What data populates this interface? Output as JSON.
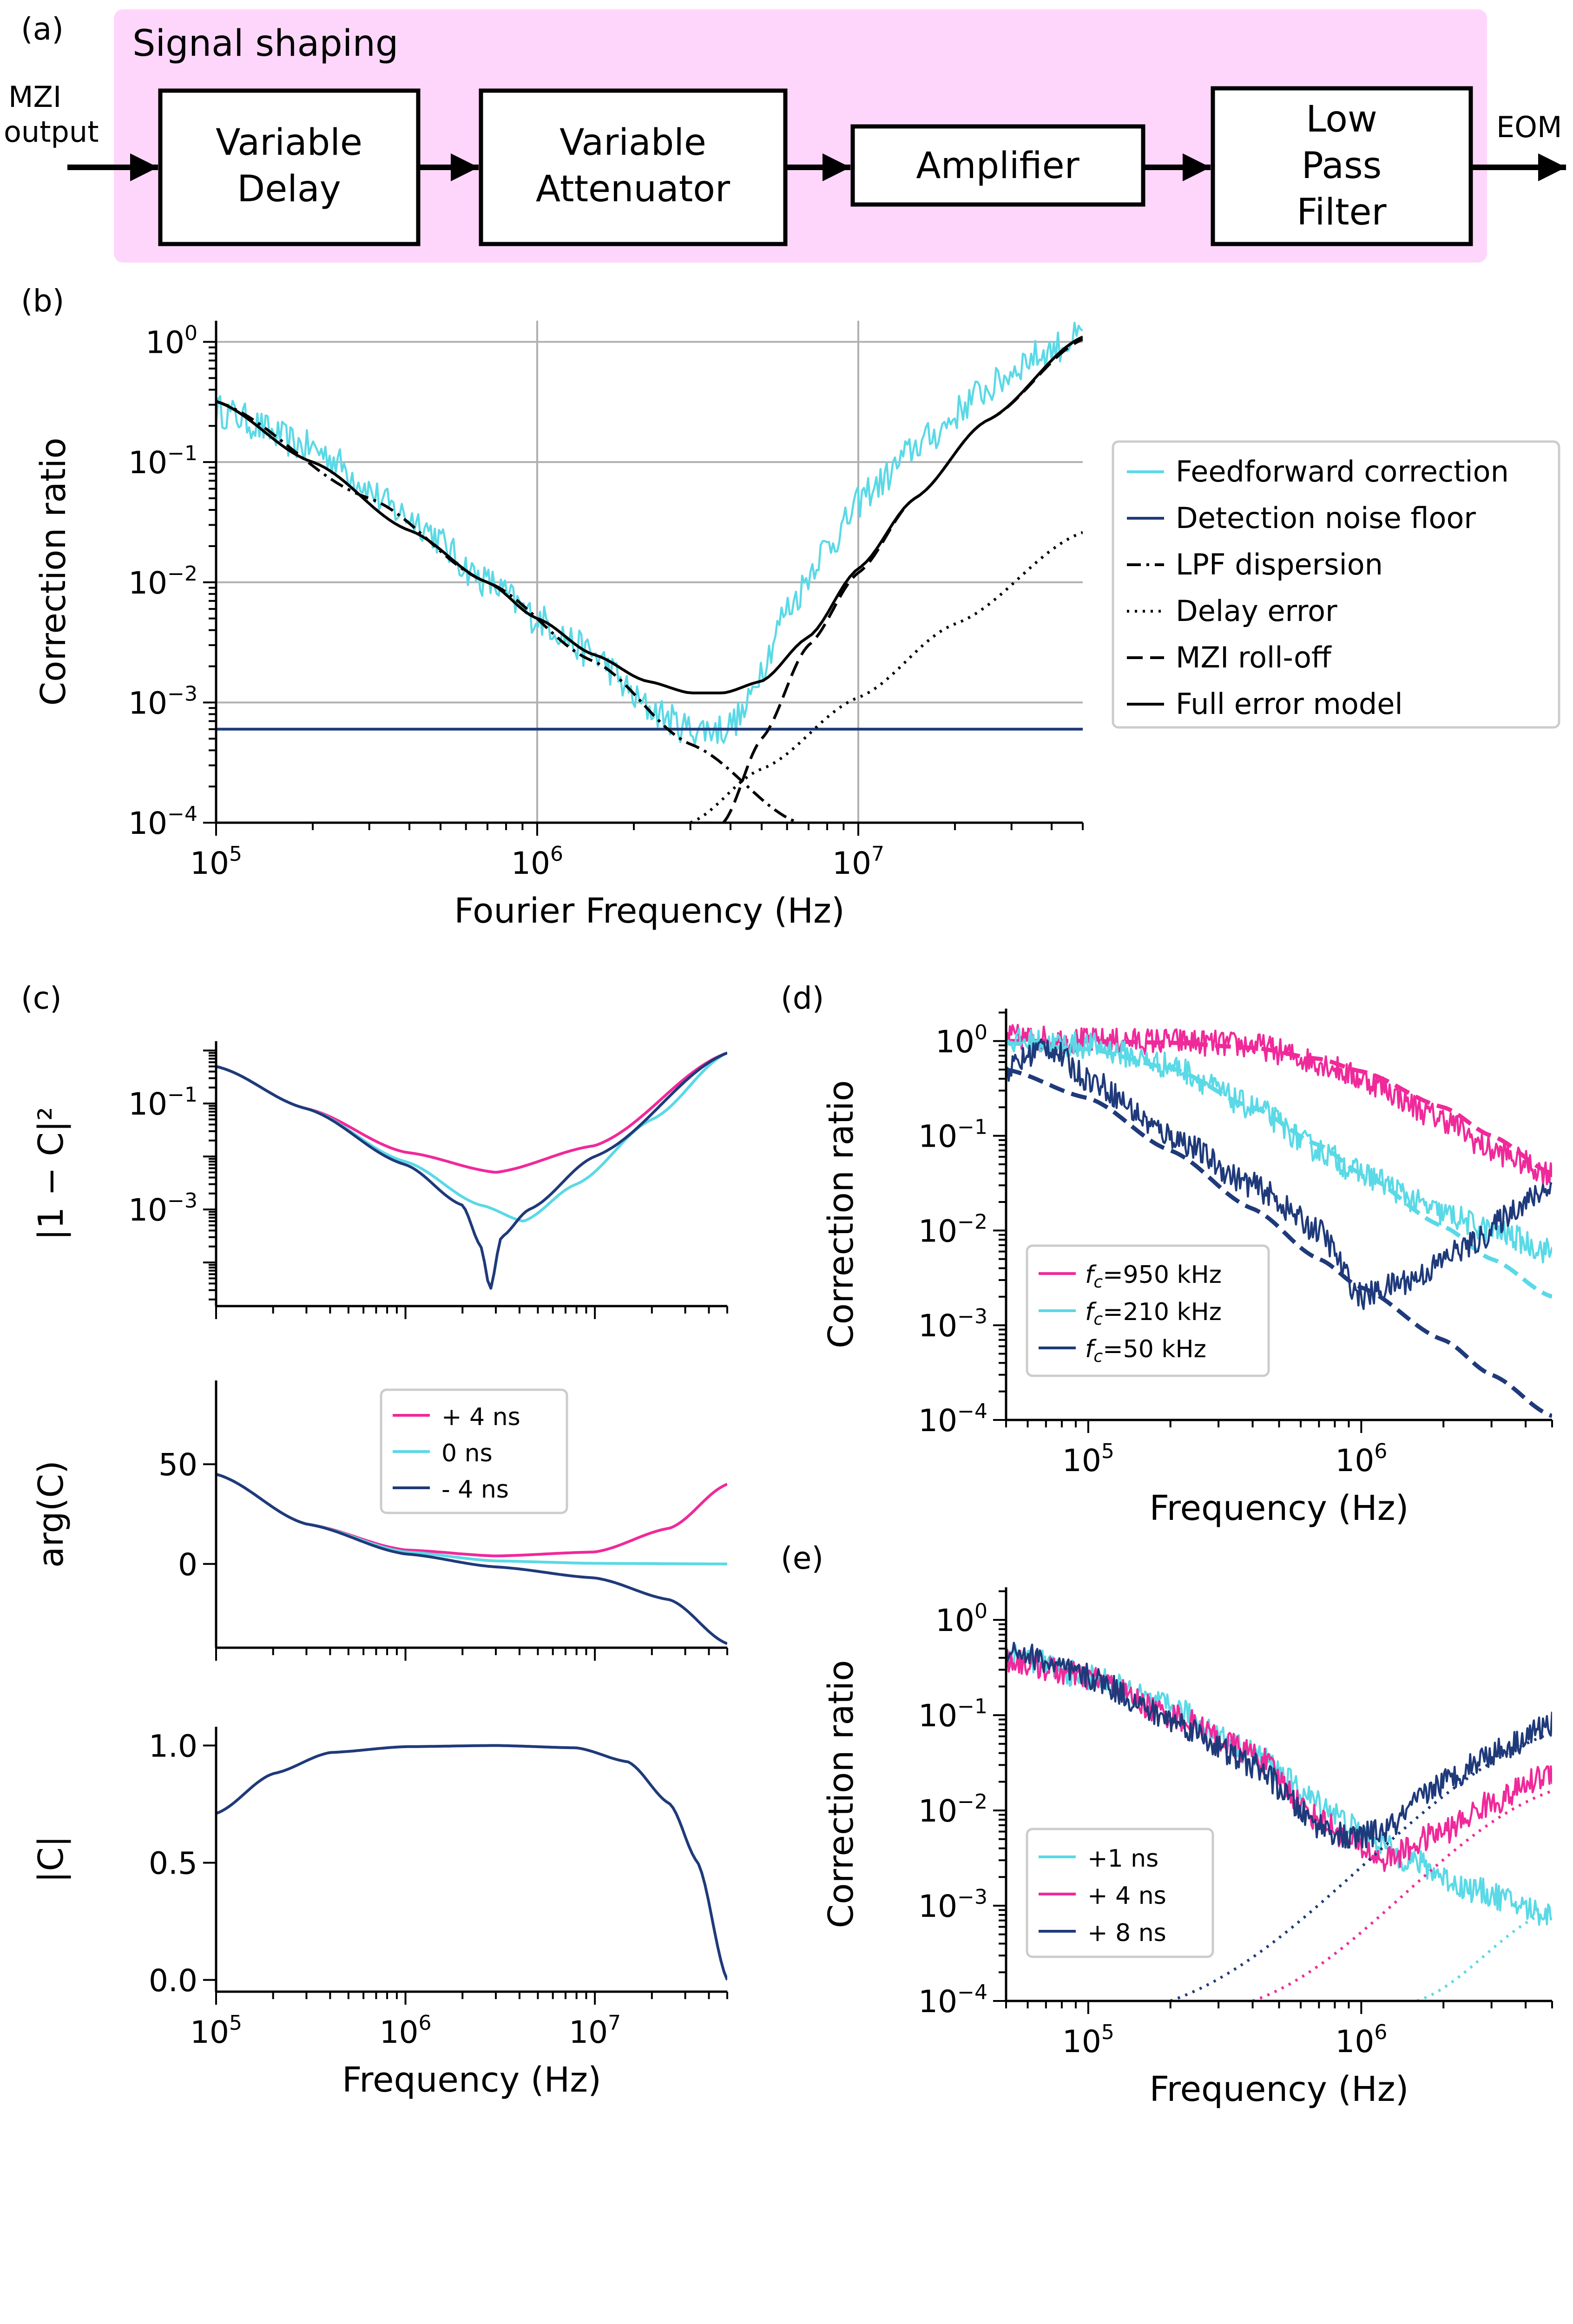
{
  "panel_a": {
    "label": "(a)",
    "group_title": "Signal shaping",
    "input_label_line1": "MZI",
    "input_label_line2": "output",
    "output_label": "EOM",
    "blocks": [
      {
        "line1": "Variable",
        "line2": "Delay"
      },
      {
        "line1": "Variable",
        "line2": "Attenuator"
      },
      {
        "line1": "Amplifier"
      },
      {
        "line1": "Low",
        "line2": "Pass",
        "line3": "Filter"
      }
    ],
    "colors": {
      "group_fill": "#ffd6fb"
    }
  },
  "chart_data": [
    {
      "id": "b",
      "label": "(b)",
      "type": "line",
      "xscale": "log",
      "yscale": "log",
      "xlabel": "Fourier Frequency (Hz)",
      "ylabel": "Correction ratio",
      "xlim": [
        100000,
        50000000
      ],
      "ylim": [
        0.0001,
        1.5
      ],
      "xticks": [
        {
          "base": "10",
          "exp": "5"
        },
        {
          "base": "10",
          "exp": "6"
        },
        {
          "base": "10",
          "exp": "7"
        }
      ],
      "yticks": [
        {
          "base": "10",
          "exp": "0"
        },
        {
          "base": "10",
          "exp": "−1"
        },
        {
          "base": "10",
          "exp": "−2"
        },
        {
          "base": "10",
          "exp": "−3"
        },
        {
          "base": "10",
          "exp": "−4"
        }
      ],
      "grid": true,
      "legend_position": "right",
      "series": [
        {
          "name": "Feedforward correction",
          "color": "#5ad9e6",
          "style": "solid",
          "noisy": true,
          "x": [
            100000,
            200000,
            400000,
            700000,
            1000000,
            1500000,
            2200000,
            3000000,
            3800000,
            4400000,
            5000000,
            6000000,
            8000000,
            11000000,
            16000000,
            25000000,
            35000000,
            50000000
          ],
          "y": [
            0.27,
            0.13,
            0.035,
            0.01,
            0.005,
            0.0025,
            0.0009,
            0.0006,
            0.0006,
            0.0008,
            0.002,
            0.006,
            0.02,
            0.06,
            0.15,
            0.4,
            0.75,
            1.1
          ]
        },
        {
          "name": "Detection noise floor",
          "color": "#1f3a7a",
          "style": "solid",
          "x": [
            100000,
            50000000
          ],
          "y": [
            0.0006,
            0.0006
          ]
        },
        {
          "name": "LPF dispersion",
          "color": "#000000",
          "style": "dashdot",
          "x": [
            100000,
            300000,
            700000,
            1500000,
            3000000,
            6500000
          ],
          "y": [
            0.32,
            0.05,
            0.01,
            0.0022,
            0.00045,
            0.0001
          ]
        },
        {
          "name": "Delay error",
          "color": "#000000",
          "style": "dotted",
          "x": [
            3000000,
            5000000,
            10000000,
            20000000,
            50000000
          ],
          "y": [
            0.0001,
            0.00028,
            0.0011,
            0.0045,
            0.026
          ]
        },
        {
          "name": "MZI roll-off",
          "color": "#000000",
          "style": "dashed",
          "x": [
            3800000,
            5000000,
            7000000,
            10000000,
            15000000,
            25000000,
            50000000
          ],
          "y": [
            0.0001,
            0.0005,
            0.003,
            0.012,
            0.05,
            0.22,
            1.05
          ]
        },
        {
          "name": "Full error model",
          "color": "#000000",
          "style": "solid",
          "x": [
            100000,
            200000,
            400000,
            700000,
            1000000,
            1500000,
            2200000,
            3000000,
            3800000,
            5000000,
            7000000,
            10000000,
            15000000,
            25000000,
            50000000
          ],
          "y": [
            0.32,
            0.1,
            0.027,
            0.01,
            0.005,
            0.0025,
            0.0015,
            0.0012,
            0.0012,
            0.0015,
            0.0035,
            0.013,
            0.05,
            0.22,
            1.1
          ]
        }
      ]
    },
    {
      "id": "c1",
      "label": "(c)",
      "type": "line",
      "xscale": "log",
      "yscale": "log",
      "ylabel": "|1 − C|²",
      "xlim": [
        100000,
        50000000
      ],
      "ylim": [
        1.5e-05,
        1.5
      ],
      "yticks": [
        {
          "base": "10",
          "exp": "−1"
        },
        {
          "base": "10",
          "exp": "−3"
        }
      ],
      "grid": false,
      "series": [
        {
          "name": "+ 4 ns",
          "color": "#f0299a",
          "x": [
            100000,
            300000,
            1000000,
            3000000,
            10000000,
            50000000
          ],
          "y": [
            0.5,
            0.08,
            0.012,
            0.005,
            0.016,
            0.9
          ]
        },
        {
          "name": "0 ns",
          "color": "#5ad9e6",
          "x": [
            100000,
            300000,
            1000000,
            2500000,
            4200000,
            8000000,
            20000000,
            50000000
          ],
          "y": [
            0.5,
            0.08,
            0.008,
            0.0012,
            0.0006,
            0.003,
            0.05,
            0.9
          ]
        },
        {
          "name": "- 4 ns",
          "color": "#1f3a7a",
          "x": [
            100000,
            300000,
            1000000,
            2000000,
            2500000,
            2800000,
            3200000,
            4500000,
            10000000,
            50000000
          ],
          "y": [
            0.5,
            0.08,
            0.007,
            0.0012,
            0.0002,
            3e-05,
            0.0003,
            0.001,
            0.01,
            0.9
          ]
        }
      ]
    },
    {
      "id": "c2",
      "type": "line",
      "xscale": "log",
      "yscale": "linear",
      "ylabel": "arg(C)",
      "xlim": [
        100000,
        50000000
      ],
      "ylim": [
        -42,
        92
      ],
      "yticks": [
        {
          "value": 50,
          "text": "50"
        },
        {
          "value": 0,
          "text": "0"
        }
      ],
      "grid": false,
      "legend_position": "top-center",
      "series": [
        {
          "name": "+ 4 ns",
          "color": "#f0299a",
          "x": [
            100000,
            300000,
            1000000,
            3000000,
            10000000,
            25000000,
            50000000
          ],
          "y": [
            45,
            20,
            7,
            4,
            6,
            18,
            40
          ]
        },
        {
          "name": "0 ns",
          "color": "#5ad9e6",
          "x": [
            100000,
            300000,
            1000000,
            3000000,
            10000000,
            50000000
          ],
          "y": [
            45,
            20,
            6,
            1.5,
            0.3,
            0
          ]
        },
        {
          "name": "- 4 ns",
          "color": "#1f3a7a",
          "x": [
            100000,
            300000,
            1000000,
            3000000,
            10000000,
            25000000,
            50000000
          ],
          "y": [
            45,
            20,
            5,
            -1.5,
            -7,
            -18,
            -40
          ]
        }
      ]
    },
    {
      "id": "c3",
      "type": "line",
      "xscale": "log",
      "yscale": "linear",
      "xlabel": "Frequency (Hz)",
      "ylabel": "|C|",
      "xlim": [
        100000,
        50000000
      ],
      "ylim": [
        -0.05,
        1.08
      ],
      "xticks": [
        {
          "base": "10",
          "exp": "5"
        },
        {
          "base": "10",
          "exp": "6"
        },
        {
          "base": "10",
          "exp": "7"
        }
      ],
      "yticks": [
        {
          "value": 1.0,
          "text": "1.0"
        },
        {
          "value": 0.5,
          "text": "0.5"
        },
        {
          "value": 0.0,
          "text": "0.0"
        }
      ],
      "grid": false,
      "series": [
        {
          "name": "|C|",
          "color": "#1f3a7a",
          "x": [
            100000,
            200000,
            400000,
            1000000,
            3000000,
            8000000,
            15000000,
            25000000,
            35000000,
            50000000
          ],
          "y": [
            0.71,
            0.88,
            0.97,
            0.995,
            1.0,
            0.99,
            0.93,
            0.75,
            0.5,
            0.0
          ]
        }
      ]
    },
    {
      "id": "d",
      "label": "(d)",
      "type": "line",
      "xscale": "log",
      "yscale": "log",
      "xlabel": "Frequency (Hz)",
      "ylabel": "Correction ratio",
      "xlim": [
        50000,
        5000000
      ],
      "ylim": [
        0.0001,
        2.2
      ],
      "xticks": [
        {
          "base": "10",
          "exp": "5"
        },
        {
          "base": "10",
          "exp": "6"
        }
      ],
      "yticks": [
        {
          "base": "10",
          "exp": "0"
        },
        {
          "base": "10",
          "exp": "−1"
        },
        {
          "base": "10",
          "exp": "−2"
        },
        {
          "base": "10",
          "exp": "−3"
        },
        {
          "base": "10",
          "exp": "−4"
        }
      ],
      "grid": false,
      "legend_position": "lower-left",
      "legend": [
        {
          "prefix": "f",
          "sub": "c",
          "suffix": "=950 kHz",
          "color": "#f0299a"
        },
        {
          "prefix": "f",
          "sub": "c",
          "suffix": "=210 kHz",
          "color": "#5ad9e6"
        },
        {
          "prefix": "f",
          "sub": "c",
          "suffix": "=50 kHz",
          "color": "#1f3a7a"
        }
      ],
      "series": [
        {
          "name": "fc=950 kHz measured",
          "color": "#f0299a",
          "style": "solid",
          "noisy": true,
          "x": [
            50000,
            100000,
            200000,
            400000,
            700000,
            1000000,
            2000000,
            3000000,
            5000000
          ],
          "y": [
            1.1,
            1.0,
            1.0,
            0.9,
            0.6,
            0.4,
            0.15,
            0.07,
            0.04
          ]
        },
        {
          "name": "fc=950 kHz model",
          "color": "#f0299a",
          "style": "dashed",
          "x": [
            50000,
            100000,
            200000,
            400000,
            700000,
            1000000,
            2000000,
            3000000,
            5000000
          ],
          "y": [
            1.0,
            1.0,
            0.96,
            0.85,
            0.65,
            0.48,
            0.2,
            0.1,
            0.04
          ]
        },
        {
          "name": "fc=210 kHz measured",
          "color": "#5ad9e6",
          "style": "solid",
          "noisy": true,
          "x": [
            50000,
            100000,
            200000,
            400000,
            700000,
            1000000,
            2000000,
            3000000,
            5000000
          ],
          "y": [
            1.0,
            0.9,
            0.55,
            0.2,
            0.07,
            0.04,
            0.015,
            0.01,
            0.006
          ]
        },
        {
          "name": "fc=210 kHz model",
          "color": "#5ad9e6",
          "style": "dashed",
          "x": [
            50000,
            100000,
            200000,
            400000,
            700000,
            1000000,
            2000000,
            3000000,
            5000000
          ],
          "y": [
            0.95,
            0.82,
            0.52,
            0.2,
            0.08,
            0.04,
            0.011,
            0.005,
            0.002
          ]
        },
        {
          "name": "fc=50 kHz measured",
          "color": "#1f3a7a",
          "style": "solid",
          "noisy": true,
          "x": [
            50000,
            70000,
            100000,
            200000,
            400000,
            700000,
            1000000,
            1500000,
            2500000,
            4000000,
            5000000
          ],
          "y": [
            0.5,
            0.9,
            0.4,
            0.1,
            0.03,
            0.01,
            0.002,
            0.003,
            0.007,
            0.02,
            0.03
          ]
        },
        {
          "name": "fc=50 kHz model",
          "color": "#1f3a7a",
          "style": "dashed",
          "x": [
            50000,
            100000,
            200000,
            400000,
            700000,
            1000000,
            2000000,
            3000000,
            5000000
          ],
          "y": [
            0.5,
            0.25,
            0.07,
            0.017,
            0.005,
            0.0025,
            0.0007,
            0.0003,
            0.00011
          ]
        }
      ]
    },
    {
      "id": "e",
      "label": "(e)",
      "type": "line",
      "xscale": "log",
      "yscale": "log",
      "xlabel": "Frequency (Hz)",
      "ylabel": "Correction ratio",
      "xlim": [
        50000,
        5000000
      ],
      "ylim": [
        0.0001,
        2.2
      ],
      "xticks": [
        {
          "base": "10",
          "exp": "5"
        },
        {
          "base": "10",
          "exp": "6"
        }
      ],
      "yticks": [
        {
          "base": "10",
          "exp": "0"
        },
        {
          "base": "10",
          "exp": "−1"
        },
        {
          "base": "10",
          "exp": "−2"
        },
        {
          "base": "10",
          "exp": "−3"
        },
        {
          "base": "10",
          "exp": "−4"
        }
      ],
      "grid": false,
      "legend_position": "lower-left",
      "series": [
        {
          "name": "+1 ns",
          "color": "#5ad9e6",
          "style": "solid",
          "noisy": true,
          "x": [
            50000,
            100000,
            200000,
            400000,
            700000,
            1000000,
            1500000,
            2500000,
            5000000
          ],
          "y": [
            0.45,
            0.25,
            0.12,
            0.04,
            0.012,
            0.006,
            0.003,
            0.0015,
            0.0008
          ]
        },
        {
          "name": "+ 4 ns",
          "color": "#f0299a",
          "style": "solid",
          "noisy": true,
          "x": [
            50000,
            100000,
            200000,
            400000,
            700000,
            1000000,
            1200000,
            2000000,
            3000000,
            5000000
          ],
          "y": [
            0.38,
            0.25,
            0.1,
            0.04,
            0.008,
            0.004,
            0.003,
            0.006,
            0.012,
            0.025
          ]
        },
        {
          "name": "+ 8 ns",
          "color": "#1f3a7a",
          "style": "solid",
          "noisy": true,
          "x": [
            50000,
            100000,
            200000,
            400000,
            700000,
            900000,
            1200000,
            2000000,
            3000000,
            5000000
          ],
          "y": [
            0.5,
            0.25,
            0.09,
            0.03,
            0.007,
            0.005,
            0.006,
            0.02,
            0.04,
            0.08
          ]
        },
        {
          "name": "+1 ns model",
          "color": "#5ad9e6",
          "style": "dotted",
          "x": [
            1600000,
            5000000
          ],
          "y": [
            0.0001,
            0.0009
          ]
        },
        {
          "name": "+ 4 ns model",
          "color": "#f0299a",
          "style": "dotted",
          "x": [
            400000,
            5000000
          ],
          "y": [
            0.0001,
            0.016
          ]
        },
        {
          "name": "+ 8 ns model",
          "color": "#1f3a7a",
          "style": "dotted",
          "x": [
            200000,
            5000000
          ],
          "y": [
            0.0001,
            0.065
          ]
        }
      ]
    }
  ]
}
